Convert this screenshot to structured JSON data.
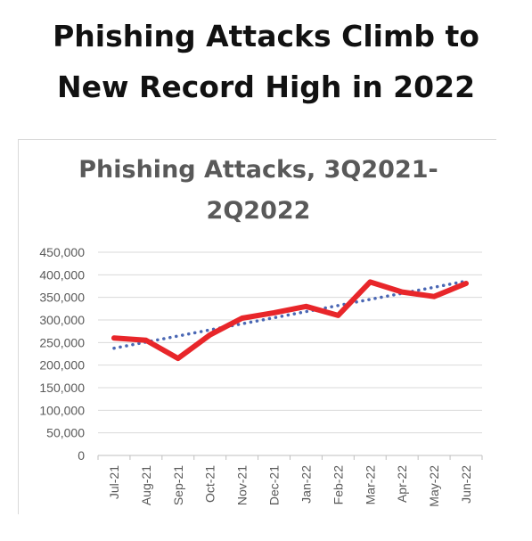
{
  "headline": {
    "line1": "Phishing Attacks Climb to",
    "line2": "New Record High in 2022"
  },
  "chart_data": {
    "type": "line",
    "title_line1": "Phishing Attacks, 3Q2021-",
    "title_line2": "2Q2022",
    "categories": [
      "Jul-21",
      "Aug-21",
      "Sep-21",
      "Oct-21",
      "Nov-21",
      "Dec-21",
      "Jan-22",
      "Feb-22",
      "Mar-22",
      "Apr-22",
      "May-22",
      "Jun-22"
    ],
    "series": [
      {
        "values": [
          260000,
          255000,
          215000,
          267000,
          304000,
          316000,
          330000,
          310000,
          384000,
          362000,
          352000,
          381000
        ],
        "color": "#e8262a",
        "style": "solid"
      },
      {
        "values": [
          237500,
          251000,
          264500,
          278000,
          291500,
          305000,
          318500,
          332000,
          345500,
          359000,
          372500,
          386000
        ],
        "color": "#4a67b4",
        "style": "dotted"
      }
    ],
    "yticks": [
      "450,000",
      "400,000",
      "350,000",
      "300,000",
      "250,000",
      "200,000",
      "150,000",
      "100,000",
      "50,000",
      "0"
    ],
    "ylim": [
      0,
      450000
    ],
    "ystep": 50000,
    "grid": true,
    "legend": "none"
  }
}
